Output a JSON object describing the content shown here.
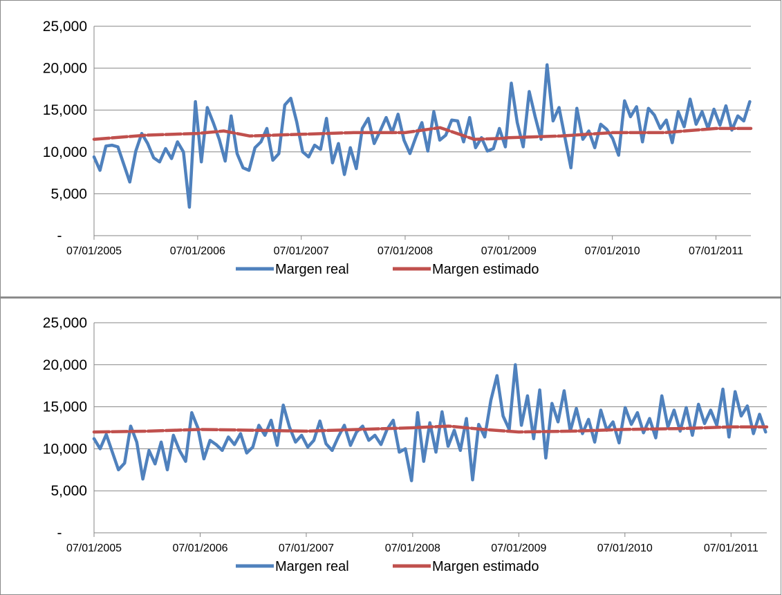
{
  "colors": {
    "real": "#4f81bd",
    "estimado": "#c0504d",
    "grid": "#868686",
    "axis": "#868686"
  },
  "legend": {
    "real_label": "Margen real",
    "estimado_label": "Margen estimado"
  },
  "chart_data": [
    {
      "type": "line",
      "title": "",
      "xlabel": "",
      "ylabel": "",
      "ylim": [
        0,
        25000
      ],
      "y_ticks": [
        "-",
        "5,000",
        "10,000",
        "15,000",
        "20,000",
        "25,000"
      ],
      "x_ticks": [
        "07/01/2005",
        "07/01/2006",
        "07/01/2007",
        "07/01/2008",
        "07/01/2009",
        "07/01/2010",
        "07/01/2011"
      ],
      "xlim": [
        "07/01/2005",
        "11/01/2011"
      ],
      "grid": true,
      "legend_position": "bottom",
      "series": [
        {
          "name": "Margen real",
          "x": [
            "07/01/2005",
            "07/22/2005",
            "08/12/2005",
            "09/02/2005",
            "09/23/2005",
            "10/14/2005",
            "11/04/2005",
            "11/25/2005",
            "12/16/2005",
            "01/06/2006",
            "01/27/2006",
            "02/17/2006",
            "03/10/2006",
            "03/31/2006",
            "04/21/2006",
            "05/12/2006",
            "06/02/2006",
            "06/23/2006",
            "07/14/2006",
            "08/04/2006",
            "08/25/2006",
            "09/15/2006",
            "10/06/2006",
            "10/27/2006",
            "11/17/2006",
            "12/08/2006",
            "12/29/2006",
            "01/19/2007",
            "02/09/2007",
            "03/02/2007",
            "03/23/2007",
            "04/13/2007",
            "05/04/2007",
            "05/25/2007",
            "06/15/2007",
            "07/06/2007",
            "07/27/2007",
            "08/17/2007",
            "09/07/2007",
            "09/28/2007",
            "10/19/2007",
            "11/09/2007",
            "11/30/2007",
            "12/21/2007",
            "01/11/2008",
            "02/01/2008",
            "02/22/2008",
            "03/14/2008",
            "04/04/2008",
            "04/25/2008",
            "05/16/2008",
            "06/06/2008",
            "06/27/2008",
            "07/18/2008",
            "08/08/2008",
            "08/29/2008",
            "09/19/2008",
            "10/10/2008",
            "10/31/2008",
            "11/21/2008",
            "12/12/2008",
            "01/02/2009",
            "01/23/2009",
            "02/13/2009",
            "03/06/2009",
            "03/27/2009",
            "04/17/2009",
            "05/08/2009",
            "05/29/2009",
            "06/19/2009",
            "07/10/2009",
            "07/31/2009",
            "08/21/2009",
            "09/11/2009",
            "10/02/2009",
            "10/23/2009",
            "11/13/2009",
            "12/04/2009",
            "12/25/2009",
            "01/15/2010",
            "02/05/2010",
            "02/26/2010",
            "03/19/2010",
            "04/09/2010",
            "04/30/2010",
            "05/21/2010",
            "06/11/2010",
            "07/02/2010",
            "07/23/2010",
            "08/13/2010",
            "09/03/2010",
            "09/24/2010",
            "10/15/2010",
            "11/05/2010",
            "11/26/2010",
            "12/17/2010",
            "01/07/2011",
            "01/28/2011",
            "02/18/2011",
            "03/11/2011",
            "04/01/2011",
            "04/22/2011",
            "05/13/2011",
            "06/03/2011",
            "06/24/2011",
            "07/15/2011",
            "08/05/2011",
            "08/26/2011",
            "09/16/2011",
            "10/07/2011",
            "10/28/2011"
          ],
          "values": [
            9400,
            7800,
            10700,
            10800,
            10600,
            8500,
            6400,
            10100,
            12200,
            11000,
            9300,
            8800,
            10400,
            9200,
            11200,
            10000,
            3400,
            16000,
            8800,
            15300,
            13500,
            11500,
            8900,
            14300,
            9800,
            8100,
            7800,
            10500,
            11200,
            12800,
            9000,
            9800,
            15600,
            16400,
            13600,
            10000,
            9400,
            10800,
            10300,
            14000,
            8700,
            11000,
            7300,
            10500,
            8000,
            12800,
            14000,
            11000,
            12500,
            14100,
            12300,
            14500,
            11400,
            9800,
            11800,
            13500,
            10100,
            14800,
            11400,
            12000,
            13800,
            13700,
            11200,
            14100,
            10500,
            11700,
            10100,
            10400,
            12800,
            10600,
            18200,
            13500,
            10600,
            17200,
            14200,
            11500,
            20400,
            13700,
            15300,
            11700,
            8100,
            15200,
            11500,
            12500,
            10500,
            13300,
            12700,
            11600,
            9600,
            16100,
            14200,
            15400,
            11200,
            15200,
            14400,
            12800,
            13800,
            11100,
            14800,
            13000,
            16300,
            13300,
            14800,
            12800,
            15100,
            13200,
            15500,
            12600,
            14300,
            13700,
            16000
          ]
        },
        {
          "name": "Margen estimado",
          "x": [
            "07/01/2005",
            "01/01/2006",
            "07/01/2006",
            "10/01/2006",
            "01/01/2007",
            "07/01/2007",
            "01/01/2008",
            "07/01/2008",
            "11/01/2008",
            "03/01/2009",
            "06/01/2009",
            "07/01/2009",
            "01/01/2010",
            "07/01/2010",
            "01/01/2011",
            "07/01/2011",
            "11/01/2011"
          ],
          "values": [
            11500,
            12000,
            12200,
            12500,
            11900,
            12100,
            12300,
            12300,
            12900,
            11500,
            11600,
            11700,
            11900,
            12300,
            12300,
            12800,
            12800
          ]
        }
      ]
    },
    {
      "type": "line",
      "title": "",
      "xlabel": "",
      "ylabel": "",
      "ylim": [
        0,
        25000
      ],
      "y_ticks": [
        "-",
        "5,000",
        "10,000",
        "15,000",
        "20,000",
        "25,000"
      ],
      "x_ticks": [
        "07/01/2005",
        "07/01/2006",
        "07/01/2007",
        "07/01/2008",
        "07/01/2009",
        "07/01/2010",
        "07/01/2011"
      ],
      "xlim": [
        "07/01/2005",
        "11/01/2011"
      ],
      "grid": true,
      "legend_position": "bottom",
      "series": [
        {
          "name": "Margen real",
          "x": [
            "07/01/2005",
            "07/22/2005",
            "08/12/2005",
            "09/02/2005",
            "09/23/2005",
            "10/14/2005",
            "11/04/2005",
            "11/25/2005",
            "12/16/2005",
            "01/06/2006",
            "01/27/2006",
            "02/17/2006",
            "03/10/2006",
            "03/31/2006",
            "04/21/2006",
            "05/12/2006",
            "06/02/2006",
            "06/23/2006",
            "07/14/2006",
            "08/04/2006",
            "08/25/2006",
            "09/15/2006",
            "10/06/2006",
            "10/27/2006",
            "11/17/2006",
            "12/08/2006",
            "12/29/2006",
            "01/19/2007",
            "02/09/2007",
            "03/02/2007",
            "03/23/2007",
            "04/13/2007",
            "05/04/2007",
            "05/25/2007",
            "06/15/2007",
            "07/06/2007",
            "07/27/2007",
            "08/17/2007",
            "09/07/2007",
            "09/28/2007",
            "10/19/2007",
            "11/09/2007",
            "11/30/2007",
            "12/21/2007",
            "01/11/2008",
            "02/01/2008",
            "02/22/2008",
            "03/14/2008",
            "04/04/2008",
            "04/25/2008",
            "05/16/2008",
            "06/06/2008",
            "06/27/2008",
            "07/18/2008",
            "08/08/2008",
            "08/29/2008",
            "09/19/2008",
            "10/10/2008",
            "10/31/2008",
            "11/21/2008",
            "12/12/2008",
            "01/02/2009",
            "01/23/2009",
            "02/13/2009",
            "03/06/2009",
            "03/27/2009",
            "04/17/2009",
            "05/08/2009",
            "05/29/2009",
            "06/19/2009",
            "07/10/2009",
            "07/31/2009",
            "08/21/2009",
            "09/11/2009",
            "10/02/2009",
            "10/23/2009",
            "11/13/2009",
            "12/04/2009",
            "12/25/2009",
            "01/15/2010",
            "02/05/2010",
            "02/26/2010",
            "03/19/2010",
            "04/09/2010",
            "04/30/2010",
            "05/21/2010",
            "06/11/2010",
            "07/02/2010",
            "07/23/2010",
            "08/13/2010",
            "09/03/2010",
            "09/24/2010",
            "10/15/2010",
            "11/05/2010",
            "11/26/2010",
            "12/17/2010",
            "01/07/2011",
            "01/28/2011",
            "02/18/2011",
            "03/11/2011",
            "04/01/2011",
            "04/22/2011",
            "05/13/2011",
            "06/03/2011",
            "06/24/2011",
            "07/15/2011",
            "08/05/2011",
            "08/26/2011",
            "09/16/2011",
            "10/07/2011",
            "10/28/2011"
          ],
          "values": [
            11200,
            10000,
            11700,
            9600,
            7500,
            8300,
            12700,
            10800,
            6400,
            9800,
            8200,
            10800,
            7500,
            11600,
            9800,
            8500,
            14300,
            12500,
            8800,
            11000,
            10500,
            9800,
            11400,
            10500,
            11800,
            9500,
            10200,
            12800,
            11600,
            13400,
            10400,
            15200,
            12600,
            10800,
            11600,
            10200,
            11000,
            13300,
            10600,
            9800,
            11400,
            12800,
            10400,
            12000,
            12700,
            11000,
            11600,
            10500,
            12300,
            13400,
            9600,
            10000,
            6200,
            14300,
            8500,
            13100,
            9600,
            14400,
            10300,
            12200,
            9800,
            13600,
            6300,
            12900,
            11400,
            15800,
            18700,
            13900,
            12300,
            20000,
            12800,
            16300,
            11200,
            17000,
            8900,
            15400,
            13200,
            16900,
            12100,
            14800,
            11800,
            13500,
            10800,
            14600,
            12200,
            13200,
            10700,
            14900,
            12900,
            14300,
            11900,
            13600,
            11300,
            16300,
            12600,
            14600,
            12100,
            14900,
            11600,
            15300,
            13000,
            14600,
            12800,
            17100,
            11400,
            16800,
            13900,
            15100,
            11800,
            14100,
            12000
          ]
        },
        {
          "name": "Margen estimado",
          "x": [
            "07/01/2005",
            "01/01/2006",
            "07/01/2006",
            "01/01/2007",
            "07/01/2007",
            "01/01/2008",
            "07/01/2008",
            "11/01/2008",
            "03/01/2009",
            "07/01/2009",
            "01/01/2010",
            "07/01/2010",
            "01/01/2011",
            "07/01/2011",
            "11/01/2011"
          ],
          "values": [
            12000,
            12100,
            12300,
            12200,
            12100,
            12300,
            12500,
            12700,
            12300,
            12000,
            12100,
            12300,
            12400,
            12600,
            12600
          ]
        }
      ]
    }
  ]
}
